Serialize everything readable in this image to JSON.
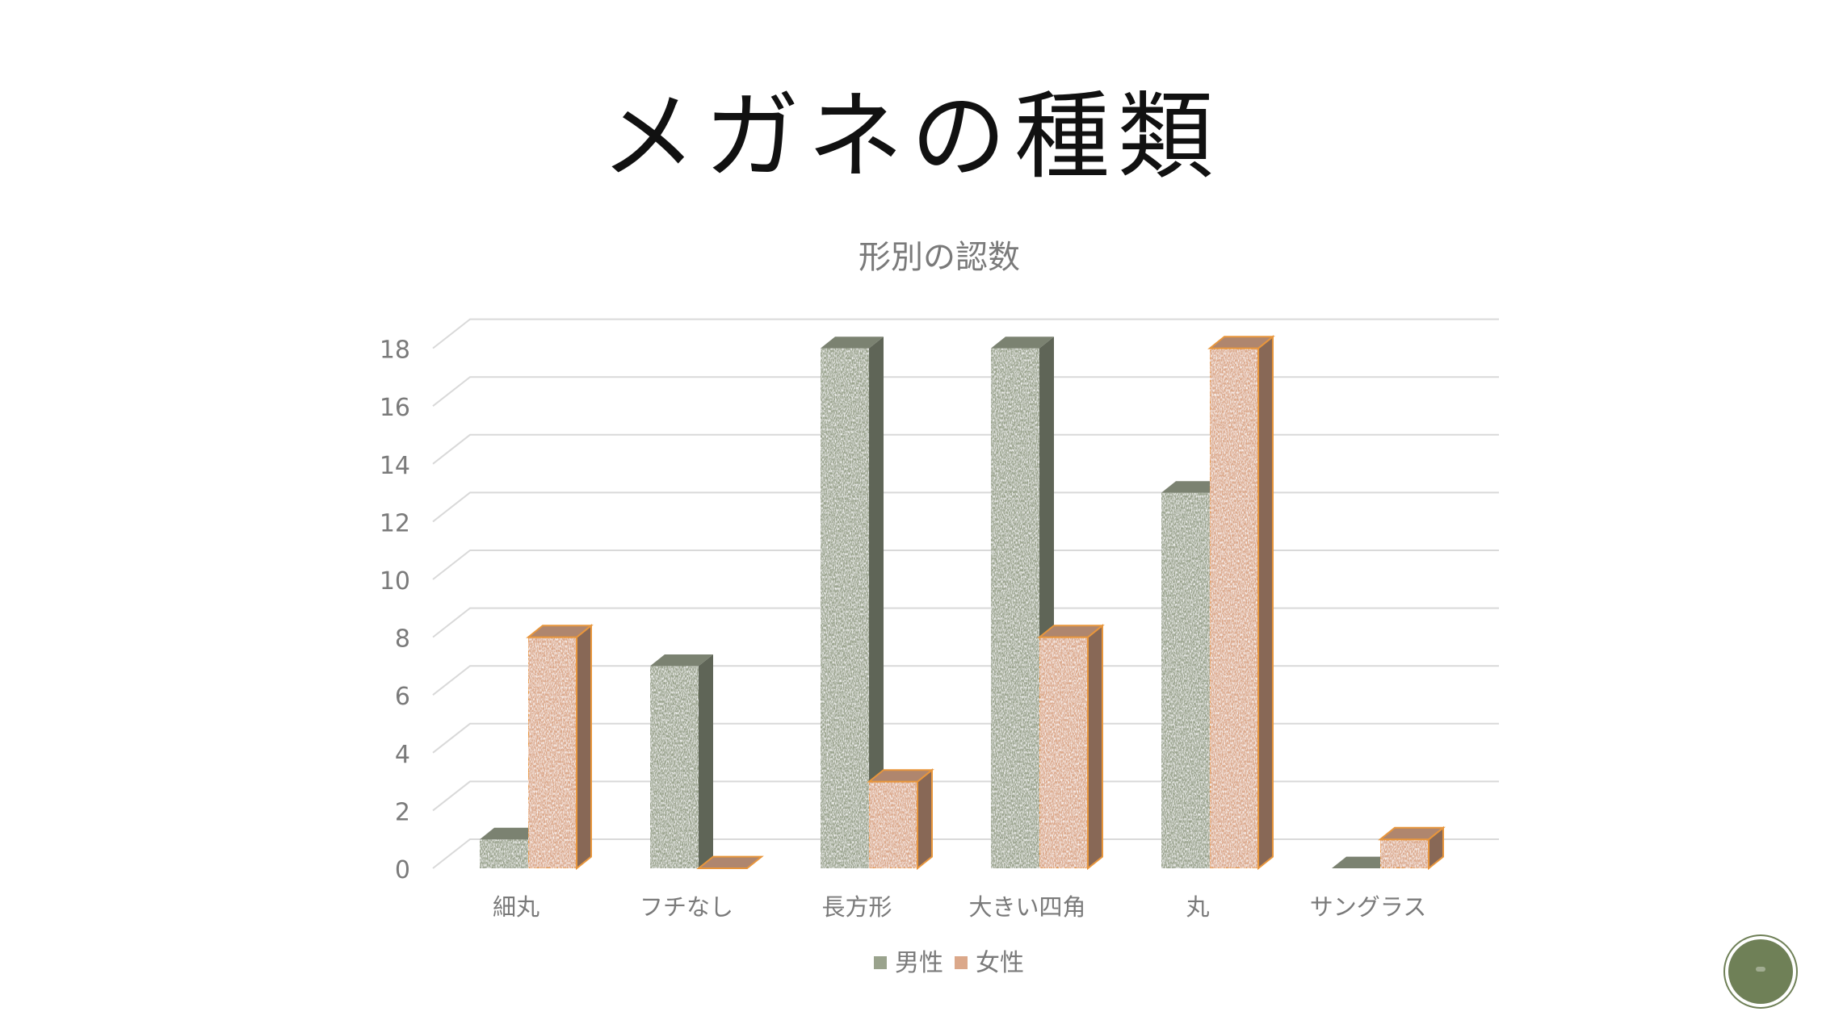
{
  "slide": {
    "title": "メガネの種類"
  },
  "chart_data": {
    "type": "bar",
    "title": "形別の認数",
    "categories": [
      "細丸",
      "フチなし",
      "長方形",
      "大きい四角",
      "丸",
      "サングラス"
    ],
    "series": [
      {
        "name": "男性",
        "values": [
          1,
          7,
          18,
          18,
          13,
          0
        ],
        "color": "#9aa38d"
      },
      {
        "name": "女性",
        "values": [
          8,
          0,
          3,
          8,
          18,
          1
        ],
        "color": "#dba88a"
      }
    ],
    "ylim": [
      0,
      18
    ],
    "yticks": [
      0,
      2,
      4,
      6,
      8,
      10,
      12,
      14,
      16,
      18
    ],
    "grid": true,
    "legend": "bottom",
    "style": "3d-clustered-column"
  }
}
